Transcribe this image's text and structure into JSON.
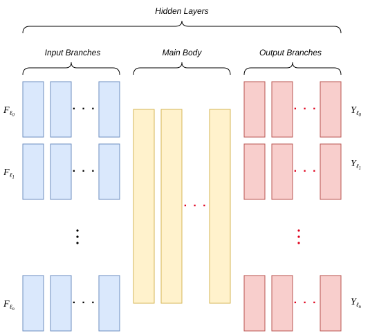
{
  "labels": {
    "hidden_layers": "Hidden Layers",
    "input_branches": "Input Branches",
    "main_body": "Main Body",
    "output_branches": "Output Branches"
  },
  "inputs": [
    {
      "symbol": "F",
      "sub": "ℓ",
      "subsub": "0"
    },
    {
      "symbol": "F",
      "sub": "ℓ",
      "subsub": "1"
    },
    {
      "symbol": "F",
      "sub": "ℓ",
      "subsub": "n"
    }
  ],
  "outputs": [
    {
      "symbol": "Y",
      "sub": "ℓ",
      "subsub": "0"
    },
    {
      "symbol": "Y",
      "sub": "ℓ",
      "subsub": "1"
    },
    {
      "symbol": "Y",
      "sub": "ℓ",
      "subsub": "n"
    }
  ],
  "ellipsis": "· · ·",
  "colors": {
    "input_fill": "#dae8fc",
    "input_stroke": "#6c8ebf",
    "body_fill": "#fff2cc",
    "body_stroke": "#d6b656",
    "output_fill": "#f8cecc",
    "output_stroke": "#b85450",
    "black_dots": "#000000",
    "red_dots": "#e0001b"
  }
}
